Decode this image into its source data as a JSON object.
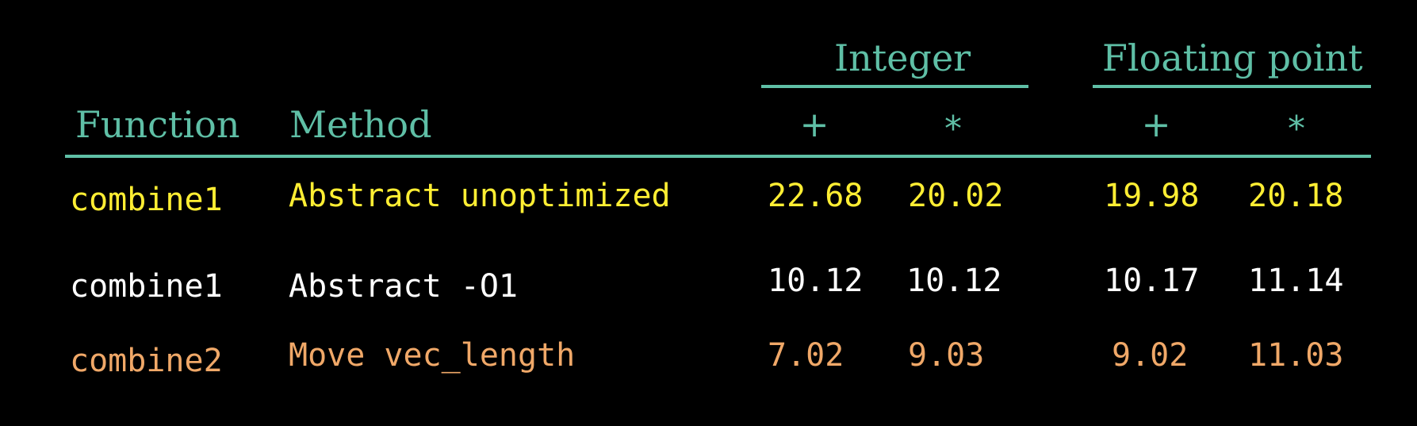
{
  "header": {
    "integer_label": "Integer",
    "float_label": "Floating point",
    "function_label": "Function",
    "method_label": "Method",
    "int_add": "+",
    "int_mul": "*",
    "fp_add": "+",
    "fp_mul": "*"
  },
  "colors": {
    "accent": "#5fbfa6",
    "row1": "#ffee33",
    "row2": "#ffffff",
    "row3": "#f0a868"
  },
  "rows": [
    {
      "function": "combine1",
      "method": "Abstract unoptimized",
      "int_add": "22.68",
      "int_mul": "20.02",
      "fp_add": "19.98",
      "fp_mul": "20.18"
    },
    {
      "function": "combine1",
      "method": "Abstract -O1",
      "int_add": "10.12",
      "int_mul": "10.12",
      "fp_add": "10.17",
      "fp_mul": "11.14"
    },
    {
      "function": "combine2",
      "method": "Move vec_length",
      "int_add": "7.02",
      "int_mul": "9.03",
      "fp_add": "9.02",
      "fp_mul": "11.03"
    }
  ]
}
